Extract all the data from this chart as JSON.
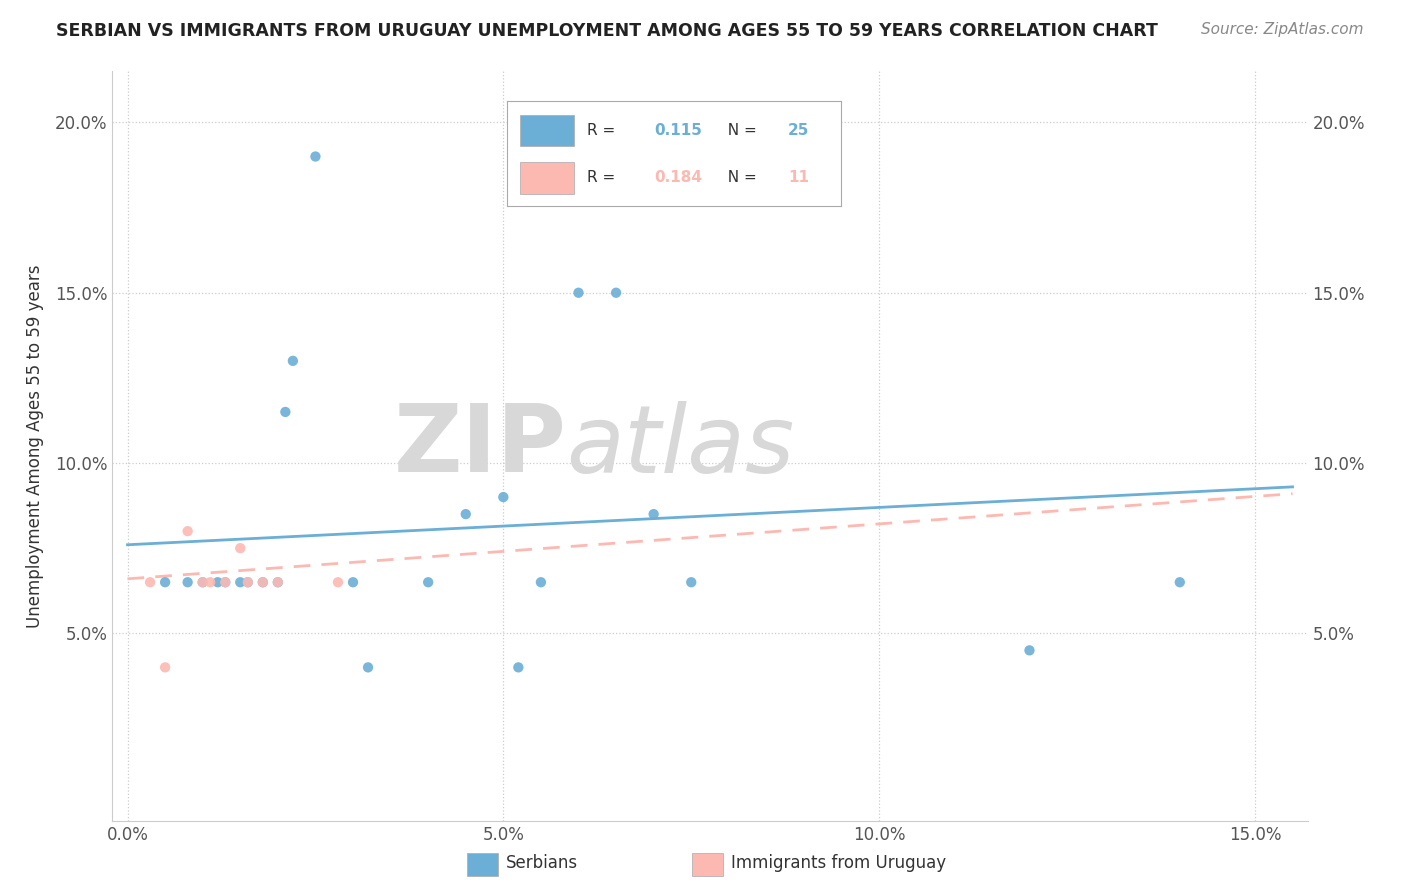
{
  "title": "SERBIAN VS IMMIGRANTS FROM URUGUAY UNEMPLOYMENT AMONG AGES 55 TO 59 YEARS CORRELATION CHART",
  "source": "Source: ZipAtlas.com",
  "ylabel": "Unemployment Among Ages 55 to 59 years",
  "xlim": [
    -0.002,
    0.157
  ],
  "ylim": [
    -0.005,
    0.215
  ],
  "xtick_labels": [
    "0.0%",
    "5.0%",
    "10.0%",
    "15.0%"
  ],
  "xtick_vals": [
    0.0,
    0.05,
    0.1,
    0.15
  ],
  "ytick_labels": [
    "5.0%",
    "10.0%",
    "15.0%",
    "20.0%"
  ],
  "ytick_vals": [
    0.05,
    0.1,
    0.15,
    0.2
  ],
  "serbian_color": "#6baed6",
  "uruguay_color": "#fcb9b2",
  "watermark_zip": "ZIP",
  "watermark_atlas": "atlas",
  "legend_serbian_R": "0.115",
  "legend_serbian_N": "25",
  "legend_uruguay_R": "0.184",
  "legend_uruguay_N": "11",
  "serbian_x": [
    0.005,
    0.008,
    0.01,
    0.012,
    0.013,
    0.015,
    0.016,
    0.018,
    0.02,
    0.021,
    0.022,
    0.025,
    0.03,
    0.032,
    0.04,
    0.045,
    0.05,
    0.052,
    0.055,
    0.06,
    0.065,
    0.07,
    0.075,
    0.12,
    0.14
  ],
  "serbian_y": [
    0.065,
    0.065,
    0.065,
    0.065,
    0.065,
    0.065,
    0.065,
    0.065,
    0.065,
    0.115,
    0.13,
    0.19,
    0.065,
    0.04,
    0.065,
    0.085,
    0.09,
    0.04,
    0.065,
    0.15,
    0.15,
    0.085,
    0.065,
    0.045,
    0.065
  ],
  "uruguay_x": [
    0.003,
    0.005,
    0.008,
    0.01,
    0.011,
    0.013,
    0.015,
    0.016,
    0.018,
    0.02,
    0.028
  ],
  "uruguay_y": [
    0.065,
    0.04,
    0.08,
    0.065,
    0.065,
    0.065,
    0.075,
    0.065,
    0.065,
    0.065,
    0.065
  ],
  "serbian_trend_x": [
    0.0,
    0.155
  ],
  "serbian_trend_y": [
    0.076,
    0.093
  ],
  "uruguay_trend_x": [
    0.0,
    0.155
  ],
  "uruguay_trend_y": [
    0.066,
    0.091
  ]
}
